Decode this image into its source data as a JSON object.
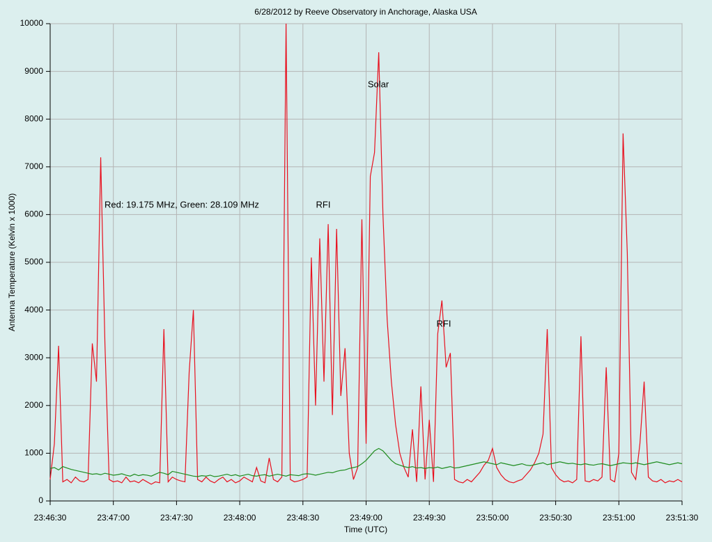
{
  "chart_data": {
    "type": "line",
    "title": "6/28/2012  by  Reeve Observatory  in  Anchorage, Alaska  USA",
    "x_label": "Time (UTC)",
    "y_label": "Antenna Temperature (Kelvin x 1000)",
    "annotations": [
      "Red: 19.175 MHz, Green: 28.109 MHz",
      "RFI",
      "Solar",
      "RFI"
    ],
    "grid": true,
    "xlim": [
      "23:46:30",
      "23:51:30"
    ],
    "xticks": [
      "23:46:30",
      "23:47:00",
      "23:47:30",
      "23:48:00",
      "23:48:30",
      "23:49:00",
      "23:49:30",
      "23:50:00",
      "23:50:30",
      "23:51:00",
      "23:51:30"
    ],
    "ylim": [
      0,
      10000
    ],
    "yticks": [
      0,
      1000,
      2000,
      3000,
      4000,
      5000,
      6000,
      7000,
      8000,
      9000,
      10000
    ],
    "x": [
      "23:46:30",
      "23:46:32",
      "23:46:34",
      "23:46:36",
      "23:46:38",
      "23:46:40",
      "23:46:42",
      "23:46:44",
      "23:46:46",
      "23:46:48",
      "23:46:50",
      "23:46:52",
      "23:46:54",
      "23:46:56",
      "23:46:58",
      "23:47:00",
      "23:47:02",
      "23:47:04",
      "23:47:06",
      "23:47:08",
      "23:47:10",
      "23:47:12",
      "23:47:14",
      "23:47:16",
      "23:47:18",
      "23:47:20",
      "23:47:22",
      "23:47:24",
      "23:47:26",
      "23:47:28",
      "23:47:30",
      "23:47:32",
      "23:47:34",
      "23:47:36",
      "23:47:38",
      "23:47:40",
      "23:47:42",
      "23:47:44",
      "23:47:46",
      "23:47:48",
      "23:47:50",
      "23:47:52",
      "23:47:54",
      "23:47:56",
      "23:47:58",
      "23:48:00",
      "23:48:02",
      "23:48:04",
      "23:48:06",
      "23:48:08",
      "23:48:10",
      "23:48:12",
      "23:48:14",
      "23:48:16",
      "23:48:18",
      "23:48:20",
      "23:48:22",
      "23:48:24",
      "23:48:26",
      "23:48:28",
      "23:48:30",
      "23:48:32",
      "23:48:34",
      "23:48:36",
      "23:48:38",
      "23:48:40",
      "23:48:42",
      "23:48:44",
      "23:48:46",
      "23:48:48",
      "23:48:50",
      "23:48:52",
      "23:48:54",
      "23:48:56",
      "23:48:58",
      "23:49:00",
      "23:49:02",
      "23:49:04",
      "23:49:06",
      "23:49:08",
      "23:49:10",
      "23:49:12",
      "23:49:14",
      "23:49:16",
      "23:49:18",
      "23:49:20",
      "23:49:22",
      "23:49:24",
      "23:49:26",
      "23:49:28",
      "23:49:30",
      "23:49:32",
      "23:49:34",
      "23:49:36",
      "23:49:38",
      "23:49:40",
      "23:49:42",
      "23:49:44",
      "23:49:46",
      "23:49:48",
      "23:49:50",
      "23:49:52",
      "23:49:54",
      "23:49:56",
      "23:49:58",
      "23:50:00",
      "23:50:02",
      "23:50:04",
      "23:50:06",
      "23:50:08",
      "23:50:10",
      "23:50:12",
      "23:50:14",
      "23:50:16",
      "23:50:18",
      "23:50:20",
      "23:50:22",
      "23:50:24",
      "23:50:26",
      "23:50:28",
      "23:50:30",
      "23:50:32",
      "23:50:34",
      "23:50:36",
      "23:50:38",
      "23:50:40",
      "23:50:42",
      "23:50:44",
      "23:50:46",
      "23:50:48",
      "23:50:50",
      "23:50:52",
      "23:50:54",
      "23:50:56",
      "23:50:58",
      "23:51:00",
      "23:51:02",
      "23:51:04",
      "23:51:06",
      "23:51:08",
      "23:51:10",
      "23:51:12",
      "23:51:14",
      "23:51:16",
      "23:51:18",
      "23:51:20",
      "23:51:22",
      "23:51:24",
      "23:51:26",
      "23:51:28",
      "23:51:30"
    ],
    "series": [
      {
        "color": "#e8101e",
        "values": [
          450,
          1200,
          3250,
          400,
          450,
          380,
          500,
          420,
          400,
          450,
          3300,
          2500,
          7200,
          3300,
          450,
          400,
          420,
          380,
          500,
          400,
          420,
          380,
          450,
          400,
          350,
          400,
          380,
          3600,
          400,
          500,
          450,
          420,
          400,
          2700,
          4000,
          450,
          400,
          500,
          420,
          380,
          450,
          500,
          400,
          450,
          380,
          420,
          500,
          450,
          400,
          700,
          420,
          380,
          900,
          450,
          400,
          500,
          10000,
          450,
          400,
          420,
          450,
          500,
          5100,
          2000,
          5500,
          2500,
          5800,
          1800,
          5700,
          2200,
          3200,
          1000,
          450,
          700,
          5900,
          1200,
          6800,
          7300,
          9400,
          6000,
          3800,
          2500,
          1600,
          1000,
          700,
          500,
          1500,
          400,
          2400,
          450,
          1700,
          400,
          3500,
          4200,
          2800,
          3100,
          450,
          400,
          380,
          450,
          400,
          500,
          600,
          750,
          850,
          1100,
          700,
          550,
          450,
          400,
          380,
          420,
          450,
          550,
          650,
          800,
          1000,
          1400,
          3600,
          700,
          550,
          450,
          400,
          420,
          380,
          450,
          3450,
          420,
          400,
          450,
          420,
          500,
          2800,
          450,
          400,
          1000,
          7700,
          5200,
          600,
          450,
          1200,
          2500,
          500,
          420,
          400,
          450,
          380,
          420,
          400,
          450,
          400
        ]
      },
      {
        "color": "#1e8c1e",
        "values": [
          680,
          700,
          650,
          720,
          690,
          660,
          640,
          620,
          600,
          580,
          560,
          570,
          550,
          580,
          560,
          540,
          550,
          570,
          540,
          520,
          560,
          530,
          550,
          540,
          520,
          560,
          600,
          580,
          550,
          620,
          600,
          580,
          560,
          540,
          520,
          510,
          530,
          520,
          540,
          510,
          520,
          540,
          560,
          530,
          550,
          520,
          540,
          560,
          530,
          520,
          540,
          550,
          520,
          540,
          560,
          540,
          520,
          550,
          540,
          530,
          560,
          570,
          560,
          540,
          560,
          580,
          600,
          590,
          620,
          640,
          650,
          680,
          700,
          720,
          780,
          850,
          950,
          1050,
          1100,
          1050,
          950,
          850,
          780,
          750,
          720,
          700,
          720,
          690,
          700,
          680,
          700,
          690,
          710,
          680,
          700,
          720,
          690,
          700,
          720,
          740,
          760,
          780,
          800,
          820,
          800,
          780,
          760,
          800,
          780,
          760,
          740,
          760,
          780,
          750,
          740,
          760,
          780,
          800,
          760,
          780,
          800,
          820,
          800,
          780,
          790,
          770,
          760,
          780,
          760,
          750,
          770,
          780,
          760,
          740,
          760,
          780,
          800,
          790,
          780,
          800,
          780,
          760,
          780,
          800,
          820,
          800,
          780,
          760,
          780,
          800,
          780
        ]
      }
    ]
  }
}
